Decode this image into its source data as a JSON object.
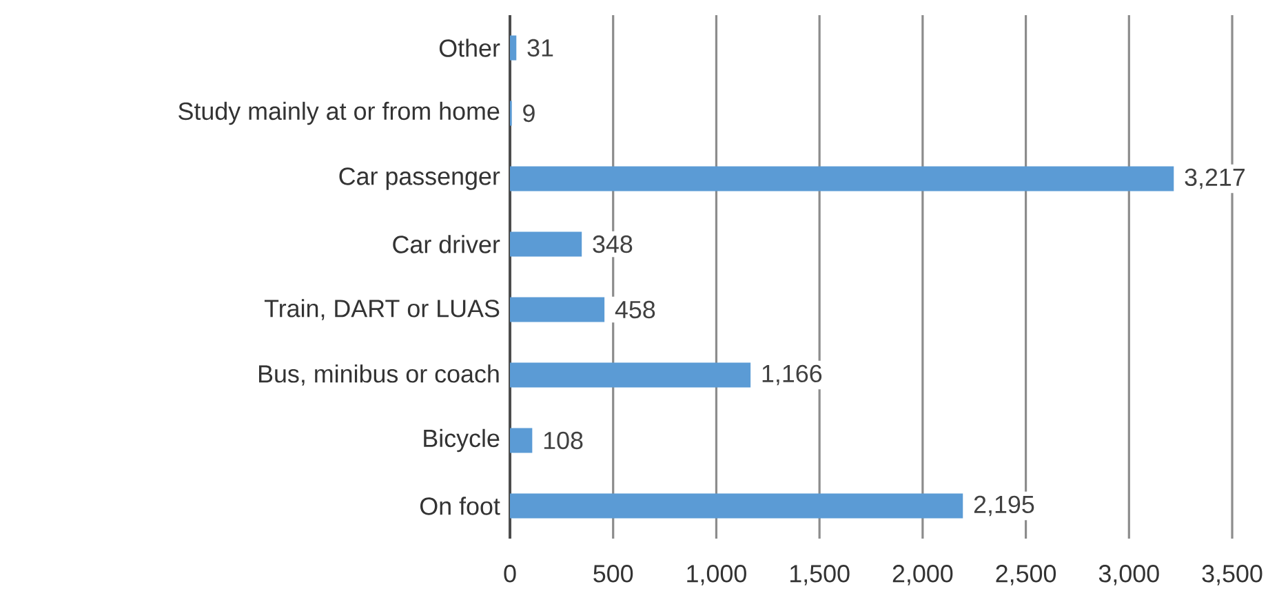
{
  "chart_data": {
    "type": "bar",
    "orientation": "horizontal",
    "categories": [
      "Other",
      "Study mainly at or from home",
      "Car passenger",
      "Car driver",
      "Train, DART or LUAS",
      "Bus, minibus or coach",
      "Bicycle",
      "On foot"
    ],
    "values": [
      31,
      9,
      3217,
      348,
      458,
      1166,
      108,
      2195
    ],
    "value_labels": [
      "31",
      "9",
      "3,217",
      "348",
      "458",
      "1,166",
      "108",
      "2,195"
    ],
    "color": "#5b9bd5",
    "xlim": [
      0,
      3500
    ],
    "xticks": [
      0,
      500,
      {
        "value": 1000,
        "label": "1,000"
      },
      {
        "value": 1500,
        "label": "1,500"
      },
      {
        "value": 2000,
        "label": "2,000"
      },
      {
        "value": 2500,
        "label": "2,500"
      },
      {
        "value": 3000,
        "label": "3,000"
      },
      {
        "value": 3500,
        "label": "3,500"
      }
    ],
    "grid": "x"
  }
}
